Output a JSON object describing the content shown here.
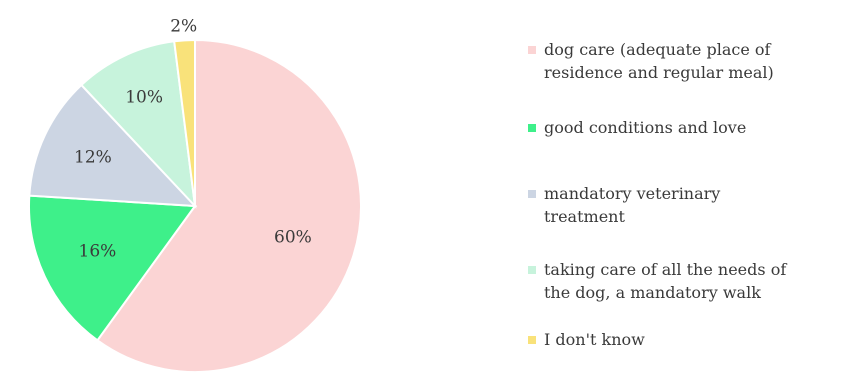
{
  "chart_data": {
    "type": "pie",
    "title": "",
    "start_angle_deg": 0,
    "direction": "clockwise",
    "legend_position": "right",
    "slices": [
      {
        "name": "dog care (adequate place of residence and regular meal)",
        "value": 60,
        "label": "60%",
        "color": "#fbd4d4"
      },
      {
        "name": "good conditions and love",
        "value": 16,
        "label": "16%",
        "color": "#3ef08a"
      },
      {
        "name": "mandatory veterinary treatment",
        "value": 12,
        "label": "12%",
        "color": "#ccd5e3"
      },
      {
        "name": "taking care of all the needs of the dog, a mandatory walk",
        "value": 10,
        "label": "10%",
        "color": "#c7f3dc"
      },
      {
        "name": "I don't know",
        "value": 2,
        "label": "2%",
        "color": "#f9e27a"
      }
    ]
  },
  "legend": {
    "items": [
      {
        "line1": "dog care (adequate place of",
        "line2": "residence and regular meal)"
      },
      {
        "line1": "good conditions and love",
        "line2": ""
      },
      {
        "line1": "mandatory veterinary",
        "line2": "treatment"
      },
      {
        "line1": "taking care of all the needs of",
        "line2": "the dog, a mandatory walk"
      },
      {
        "line1": "I don't know",
        "line2": ""
      }
    ]
  }
}
